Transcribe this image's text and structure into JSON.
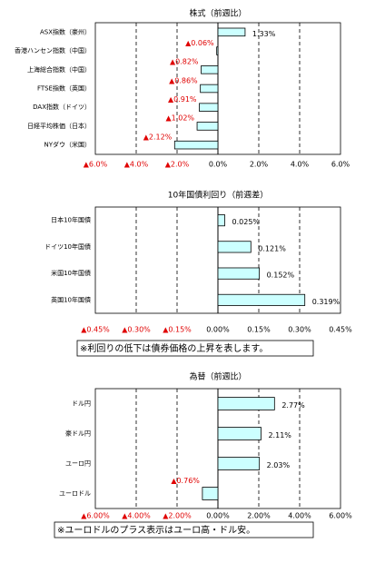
{
  "chart_data": [
    {
      "type": "bar",
      "orientation": "horizontal",
      "title": "株式（前週比）",
      "categories": [
        "ASX指数（豪州）",
        "香港ハンセン指数（中国）",
        "上海総合指数（中国）",
        "FTSE指数（英国）",
        "DAX指数（ドイツ）",
        "日経平均株価（日本）",
        "NYダウ（米国）"
      ],
      "values": [
        1.33,
        -0.06,
        -0.82,
        -0.86,
        -0.91,
        -1.02,
        -2.12
      ],
      "value_labels": [
        "1.33%",
        "▲0.06%",
        "▲0.82%",
        "▲0.86%",
        "▲0.91%",
        "▲1.02%",
        "▲2.12%"
      ],
      "xlim": [
        -6,
        6
      ],
      "xticks": [
        {
          "value": -6,
          "label": "▲6.0%"
        },
        {
          "value": -4,
          "label": "▲4.0%"
        },
        {
          "value": -2,
          "label": "▲2.0%"
        },
        {
          "value": 0,
          "label": "0.0%"
        },
        {
          "value": 2,
          "label": "2.0%"
        },
        {
          "value": 4,
          "label": "4.0%"
        },
        {
          "value": 6,
          "label": "6.0%"
        }
      ],
      "grid": true,
      "color": "#ccffff"
    },
    {
      "type": "bar",
      "orientation": "horizontal",
      "title": "10年国債利回り（前週差）",
      "categories": [
        "日本10年国債",
        "ドイツ10年国債",
        "米国10年国債",
        "英国10年国債"
      ],
      "values": [
        0.025,
        0.121,
        0.152,
        0.319
      ],
      "value_labels": [
        "0.025%",
        "0.121%",
        "0.152%",
        "0.319%"
      ],
      "xlim": [
        -0.45,
        0.45
      ],
      "xticks": [
        {
          "value": -0.45,
          "label": "▲0.45%"
        },
        {
          "value": -0.3,
          "label": "▲0.30%"
        },
        {
          "value": -0.15,
          "label": "▲0.15%"
        },
        {
          "value": 0,
          "label": "0.00%"
        },
        {
          "value": 0.15,
          "label": "0.15%"
        },
        {
          "value": 0.3,
          "label": "0.30%"
        },
        {
          "value": 0.45,
          "label": "0.45%"
        }
      ],
      "grid": true,
      "color": "#ccffff",
      "note": "※利回りの低下は債券価格の上昇を表します。"
    },
    {
      "type": "bar",
      "orientation": "horizontal",
      "title": "為替（前週比）",
      "categories": [
        "ドル円",
        "豪ドル円",
        "ユーロ円",
        "ユーロドル"
      ],
      "values": [
        2.77,
        2.11,
        2.03,
        -0.76
      ],
      "value_labels": [
        "2.77%",
        "2.11%",
        "2.03%",
        "▲0.76%"
      ],
      "xlim": [
        -6,
        6
      ],
      "xticks": [
        {
          "value": -6,
          "label": "▲6.00%"
        },
        {
          "value": -4,
          "label": "▲4.00%"
        },
        {
          "value": -2,
          "label": "▲2.00%"
        },
        {
          "value": 0,
          "label": "0.00%"
        },
        {
          "value": 2,
          "label": "2.00%"
        },
        {
          "value": 4,
          "label": "4.00%"
        },
        {
          "value": 6,
          "label": "6.00%"
        }
      ],
      "grid": true,
      "color": "#ccffff",
      "note": "※ユーロドルのプラス表示はユーロ高・ドル安。"
    }
  ]
}
